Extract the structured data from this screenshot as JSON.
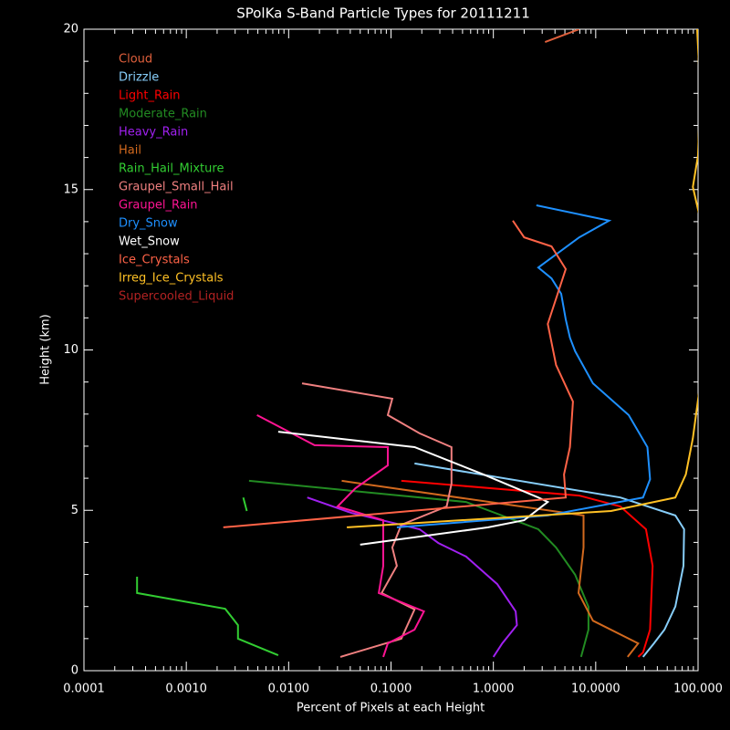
{
  "chart_data": {
    "type": "line",
    "title": "SPolKa S-Band Particle Types for 20111211",
    "xlabel": "Percent of Pixels at each Height",
    "ylabel": "Height (km)",
    "xscale": "log",
    "xlim": [
      0.0001,
      100
    ],
    "xticks": [
      {
        "value": 0.0001,
        "label": "0.0001"
      },
      {
        "value": 0.001,
        "label": "0.0010"
      },
      {
        "value": 0.01,
        "label": "0.0100"
      },
      {
        "value": 0.1,
        "label": "0.1000"
      },
      {
        "value": 1,
        "label": "1.0000"
      },
      {
        "value": 10,
        "label": "10.0000"
      },
      {
        "value": 100,
        "label": "100.000"
      }
    ],
    "ylim": [
      0,
      20
    ],
    "yticks": [
      0,
      5,
      10,
      15,
      20
    ],
    "legend": "upper left",
    "series": [
      {
        "name": "Cloud",
        "color": "#e0603c",
        "x": [
          3.2,
          6.9
        ],
        "y": [
          19.6,
          20.0
        ]
      },
      {
        "name": "Drizzle",
        "color": "#87cefa",
        "x": [
          0.17,
          17.4,
          60,
          73,
          72,
          60,
          47,
          37,
          29
        ],
        "y": [
          6.46,
          5.4,
          4.84,
          4.41,
          3.27,
          2.0,
          1.28,
          0.85,
          0.43
        ]
      },
      {
        "name": "Light_Rain",
        "color": "#ff0000",
        "x": [
          0.126,
          6.9,
          17.4,
          31,
          36,
          34,
          29,
          26
        ],
        "y": [
          5.92,
          5.46,
          5.12,
          4.41,
          3.27,
          1.28,
          0.57,
          0.43
        ]
      },
      {
        "name": "Moderate_Rain",
        "color": "#228b22",
        "x": [
          0.0041,
          0.54,
          2.75,
          4.1,
          6.3,
          8.5,
          8.5,
          7.2
        ],
        "y": [
          5.92,
          5.26,
          4.41,
          3.84,
          2.99,
          1.99,
          1.28,
          0.43
        ]
      },
      {
        "name": "Heavy_Rain",
        "color": "#a020f0",
        "x": [
          0.0152,
          0.041,
          0.19,
          0.29,
          0.54,
          1.09,
          1.65,
          1.7,
          1.22,
          1.0
        ],
        "y": [
          5.4,
          4.92,
          4.41,
          3.98,
          3.56,
          2.7,
          1.85,
          1.42,
          0.85,
          0.43
        ]
      },
      {
        "name": "Hail",
        "color": "#d2691e",
        "x": [
          0.033,
          7.6,
          7.6,
          6.8,
          9.4,
          21,
          26,
          20.5
        ],
        "y": [
          5.92,
          4.84,
          3.84,
          2.42,
          1.56,
          1.0,
          0.85,
          0.43
        ]
      },
      {
        "name": "Rain_Hail_Mixture",
        "color": "#32cd32",
        "x": [
          0.0036,
          0.0039,
          null,
          0.00033,
          0.00033,
          0.0024,
          0.0032,
          0.0032,
          0.0079
        ],
        "y": [
          5.4,
          4.98,
          null,
          2.93,
          2.42,
          1.93,
          1.42,
          1.0,
          0.48
        ]
      },
      {
        "name": "Graupel_Small_Hail",
        "color": "#f08080",
        "x": [
          0.0135,
          0.103,
          0.093,
          0.19,
          0.39,
          0.39,
          0.35,
          0.126,
          0.103,
          0.114,
          0.081,
          0.17,
          0.126,
          0.032
        ],
        "y": [
          8.96,
          8.48,
          7.97,
          7.4,
          6.97,
          5.83,
          5.12,
          4.55,
          3.84,
          3.27,
          2.42,
          1.91,
          1.0,
          0.43
        ]
      },
      {
        "name": "Graupel_Rain",
        "color": "#ff1493",
        "x": [
          0.0049,
          0.0179,
          0.093,
          0.093,
          0.045,
          0.03,
          0.084,
          0.084,
          0.076,
          0.21,
          0.17,
          0.093,
          0.084
        ],
        "y": [
          7.97,
          7.03,
          6.97,
          6.4,
          5.69,
          5.12,
          4.69,
          3.27,
          2.42,
          1.85,
          1.28,
          0.85,
          0.43
        ]
      },
      {
        "name": "Dry_Snow",
        "color": "#1e90ff",
        "x": [
          2.63,
          13.5,
          6.9,
          2.75,
          3.7,
          4.6,
          5.1,
          5.6,
          6.3,
          9.4,
          21,
          32,
          34,
          29,
          3.4,
          0.114
        ],
        "y": [
          14.51,
          14.03,
          13.51,
          12.57,
          12.23,
          11.75,
          10.95,
          10.38,
          9.96,
          8.96,
          7.97,
          6.97,
          5.97,
          5.4,
          4.84,
          4.47
        ]
      },
      {
        "name": "Wet_Snow",
        "color": "#ffffff",
        "x": [
          0.0079,
          0.17,
          0.8,
          2.75,
          3.4,
          2.0,
          0.89,
          0.05
        ],
        "y": [
          7.45,
          6.97,
          6.12,
          5.4,
          5.26,
          4.69,
          4.47,
          3.93
        ]
      },
      {
        "name": "Ice_Crystals",
        "color": "#ff6347",
        "x": [
          1.55,
          2.0,
          3.7,
          5.1,
          3.4,
          4.1,
          6.0,
          5.6,
          4.9,
          5.1,
          0.0023
        ],
        "y": [
          14.03,
          13.51,
          13.23,
          12.52,
          10.81,
          9.53,
          8.39,
          6.97,
          6.12,
          5.4,
          4.47
        ]
      },
      {
        "name": "Irreg_Ice_Crystals",
        "color": "#ffc125",
        "x": [
          98,
          105,
          100,
          89,
          105,
          109,
          105,
          89,
          76,
          60,
          14.1,
          0.037
        ],
        "y": [
          20,
          18.07,
          16.07,
          15.08,
          14.08,
          12.38,
          8.96,
          7.25,
          6.12,
          5.4,
          4.98,
          4.47
        ]
      },
      {
        "name": "Supercooled_Liquid",
        "color": "#b22222",
        "x": [],
        "y": []
      }
    ]
  }
}
